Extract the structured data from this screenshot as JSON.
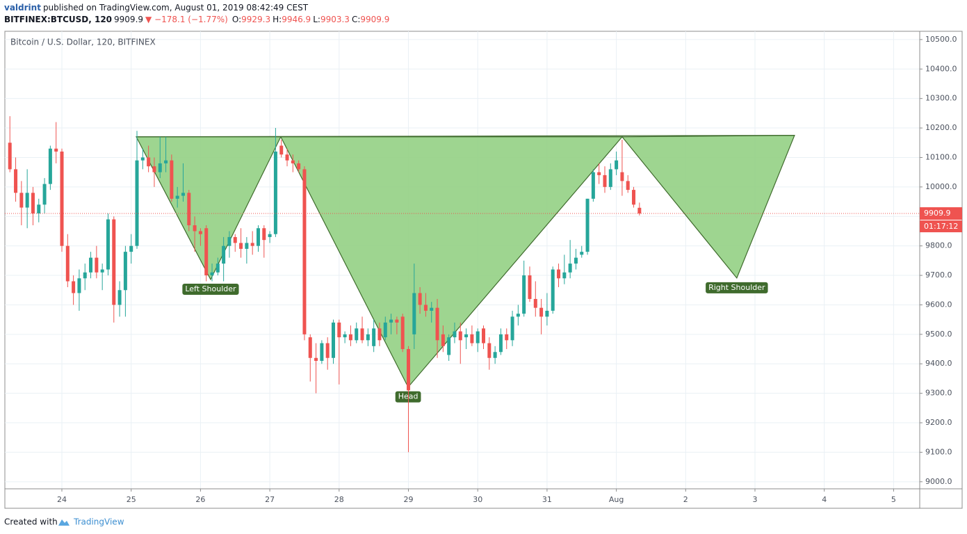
{
  "header": {
    "author": "valdrint",
    "published": "published on TradingView.com, August 01, 2019 08:42:49 CEST",
    "symbol": "BITFINEX:BTCUSD, 120",
    "change": "−178.1 (−1.77%)",
    "open_label": "O:",
    "high_label": "H:",
    "low_label": "L:",
    "close_label": "C:"
  },
  "footer": {
    "created": "Created with",
    "brand": "TradingView"
  },
  "chart_data": {
    "type": "candlestick",
    "title": "Bitcoin / U.S. Dollar, 120, BITFINEX",
    "up_color": "#26a69a",
    "down_color": "#ef5350",
    "grid": true,
    "countdown": "01:17:12",
    "xlim": [
      4.26,
      321.05
    ],
    "xticks": [
      24,
      {
        "value": 48,
        "label": "25"
      },
      {
        "value": 72,
        "label": "26"
      },
      {
        "value": 96,
        "label": "27"
      },
      {
        "value": 120,
        "label": "28"
      },
      {
        "value": 144,
        "label": "29"
      },
      {
        "value": 168,
        "label": "30"
      },
      {
        "value": 192,
        "label": "31"
      },
      {
        "value": 216,
        "label": "Aug"
      },
      {
        "value": 240,
        "label": "2"
      },
      {
        "value": 264,
        "label": "3"
      },
      {
        "value": 288,
        "label": "4"
      },
      {
        "value": 312,
        "label": "5"
      }
    ],
    "ylim": [
      8976,
      10528
    ],
    "yticks": [
      {
        "value": 9000,
        "label": "9000.0"
      },
      {
        "value": 9100,
        "label": "9100.0"
      },
      {
        "value": 9200,
        "label": "9200.0"
      },
      {
        "value": 9300,
        "label": "9300.0"
      },
      {
        "value": 9400,
        "label": "9400.0"
      },
      {
        "value": 9500,
        "label": "9500.0"
      },
      {
        "value": 9600,
        "label": "9600.0"
      },
      {
        "value": 9700,
        "label": "9700.0"
      },
      {
        "value": 9800,
        "label": "9800.0"
      },
      {
        "value": 9900,
        "label": "9900.0"
      },
      {
        "value": 10000,
        "label": "10000.0"
      },
      {
        "value": 10100,
        "label": "10100.0"
      },
      {
        "value": 10200,
        "label": "10200.0"
      },
      {
        "value": 10300,
        "label": "10300.0"
      },
      {
        "value": 10400,
        "label": "10400.0"
      },
      {
        "value": 10500,
        "label": "10500.0"
      }
    ],
    "x": [
      6,
      8,
      10,
      12,
      14,
      16,
      18,
      20,
      22,
      24,
      26,
      28,
      30,
      32,
      34,
      36,
      38,
      40,
      42,
      44,
      46,
      48,
      50,
      52,
      54,
      56,
      58,
      60,
      62,
      64,
      66,
      68,
      70,
      72,
      74,
      76,
      78,
      80,
      82,
      84,
      86,
      88,
      90,
      92,
      94,
      96,
      98,
      100,
      102,
      104,
      106,
      108,
      110,
      112,
      114,
      116,
      118,
      120,
      122,
      124,
      126,
      128,
      130,
      132,
      134,
      136,
      138,
      140,
      142,
      144,
      146,
      148,
      150,
      152,
      154,
      156,
      158,
      160,
      162,
      164,
      166,
      168,
      170,
      172,
      174,
      176,
      178,
      180,
      182,
      184,
      186,
      188,
      190,
      192,
      194,
      196,
      198,
      200,
      202,
      204,
      206,
      208,
      210,
      212,
      214,
      216,
      218,
      220,
      222,
      224
    ],
    "open": [
      10150,
      10060,
      9980,
      9930,
      9980,
      9910,
      9940,
      10010,
      10130,
      10120,
      9800,
      9680,
      9640,
      9690,
      9710,
      9760,
      9710,
      9720,
      9890,
      9600,
      9650,
      9780,
      9800,
      10090,
      10100,
      10070,
      10050,
      10080,
      10090,
      9960,
      9970,
      9980,
      9870,
      9850,
      9860,
      9700,
      9710,
      9740,
      9800,
      9830,
      9810,
      9790,
      9810,
      9800,
      9860,
      9830,
      9840,
      10140,
      10110,
      10090,
      10080,
      10060,
      9490,
      9420,
      9410,
      9470,
      9420,
      9540,
      9490,
      9500,
      9480,
      9520,
      9480,
      9460,
      9520,
      9490,
      9540,
      9550,
      9560,
      9450,
      9500,
      9640,
      9600,
      9580,
      9590,
      9500,
      9430,
      9490,
      9510,
      9490,
      9500,
      9470,
      9520,
      9470,
      9420,
      9440,
      9500,
      9480,
      9560,
      9570,
      9700,
      9620,
      9590,
      9560,
      9580,
      9720,
      9690,
      9710,
      9740,
      9770,
      9780,
      9960,
      10050,
      10040,
      10000,
      10060,
      10050,
      10020,
      9990,
      9929.3
    ],
    "high": [
      10240,
      10100,
      10020,
      10060,
      10000,
      9960,
      10030,
      10140,
      10220,
      10130,
      9840,
      9700,
      9720,
      9740,
      9780,
      9800,
      9740,
      9910,
      9900,
      9680,
      9800,
      9840,
      10190,
      10130,
      10140,
      10100,
      10170,
      10170,
      10110,
      10000,
      10080,
      9990,
      9900,
      9860,
      9870,
      9740,
      9760,
      9830,
      9850,
      9840,
      9860,
      9830,
      9850,
      9870,
      9870,
      9850,
      10200,
      10160,
      10130,
      10110,
      10090,
      10070,
      9500,
      9470,
      9480,
      9490,
      9550,
      9550,
      9510,
      9530,
      9540,
      9560,
      9520,
      9550,
      9540,
      9560,
      9570,
      9560,
      9570,
      9460,
      9740,
      9660,
      9640,
      9610,
      9620,
      9530,
      9500,
      9540,
      9540,
      9520,
      9530,
      9520,
      9530,
      9490,
      9460,
      9520,
      9520,
      9580,
      9600,
      9750,
      9730,
      9680,
      9620,
      9640,
      9730,
      9740,
      9770,
      9820,
      9790,
      9800,
      9960,
      10060,
      10080,
      10070,
      10080,
      10120,
      10160,
      10040,
      10000,
      9946.9
    ],
    "low": [
      10050,
      9950,
      9870,
      9860,
      9870,
      9880,
      9910,
      9990,
      10080,
      9780,
      9660,
      9600,
      9580,
      9650,
      9690,
      9690,
      9650,
      9700,
      9540,
      9560,
      9560,
      9740,
      9790,
      10060,
      10050,
      10000,
      10030,
      10050,
      9950,
      9930,
      9950,
      9850,
      9780,
      9800,
      9680,
      9680,
      9700,
      9680,
      9760,
      9780,
      9760,
      9740,
      9770,
      9780,
      9760,
      9810,
      9830,
      10100,
      10070,
      10050,
      10050,
      9480,
      9340,
      9300,
      9400,
      9380,
      9400,
      9330,
      9470,
      9460,
      9470,
      9470,
      9460,
      9440,
      9460,
      9480,
      9500,
      9500,
      9440,
      9100,
      9450,
      9570,
      9560,
      9540,
      9420,
      9440,
      9410,
      9470,
      9400,
      9450,
      9460,
      9440,
      9450,
      9380,
      9400,
      9430,
      9450,
      9460,
      9530,
      9560,
      9610,
      9560,
      9500,
      9530,
      9570,
      9660,
      9670,
      9690,
      9720,
      9760,
      9770,
      9950,
      10010,
      9980,
      9990,
      10040,
      9970,
      9980,
      9930,
      9903.3
    ],
    "close": [
      10060,
      9980,
      9930,
      9980,
      9910,
      9940,
      10010,
      10130,
      10120,
      9800,
      9680,
      9640,
      9690,
      9710,
      9760,
      9710,
      9720,
      9890,
      9600,
      9650,
      9780,
      9800,
      10090,
      10100,
      10070,
      10050,
      10080,
      10090,
      9960,
      9970,
      9980,
      9870,
      9850,
      9840,
      9700,
      9710,
      9740,
      9800,
      9830,
      9810,
      9790,
      9810,
      9800,
      9860,
      9820,
      9840,
      10120,
      10110,
      10090,
      10080,
      10060,
      9500,
      9420,
      9410,
      9470,
      9420,
      9540,
      9490,
      9500,
      9480,
      9520,
      9480,
      9500,
      9520,
      9480,
      9540,
      9550,
      9540,
      9450,
      9310,
      9640,
      9600,
      9580,
      9590,
      9480,
      9460,
      9490,
      9510,
      9480,
      9500,
      9470,
      9510,
      9470,
      9420,
      9440,
      9500,
      9480,
      9560,
      9570,
      9700,
      9620,
      9590,
      9560,
      9580,
      9720,
      9690,
      9710,
      9740,
      9760,
      9780,
      9960,
      10050,
      10040,
      10000,
      10060,
      10090,
      10020,
      9990,
      9940,
      9909.9
    ],
    "pattern": {
      "fill": "#93d084",
      "stroke": "#3f6b2d",
      "vertices": [
        {
          "x": 49.76,
          "y": 10170
        },
        {
          "x": 75.5,
          "y": 9686
        },
        {
          "x": 99.8,
          "y": 10170
        },
        {
          "x": 143.9,
          "y": 9321
        },
        {
          "x": 218.0,
          "y": 10170
        },
        {
          "x": 257.7,
          "y": 9691
        },
        {
          "x": 277.7,
          "y": 10175
        }
      ],
      "labels": [
        {
          "text": "Left Shoulder",
          "x": 75.5,
          "y": 9686
        },
        {
          "text": "Head",
          "x": 143.9,
          "y": 9321
        },
        {
          "text": "Right Shoulder",
          "x": 257.7,
          "y": 9691
        }
      ]
    }
  }
}
